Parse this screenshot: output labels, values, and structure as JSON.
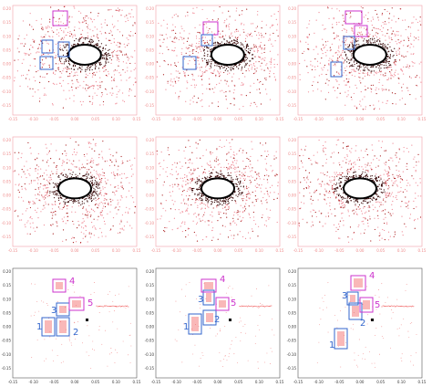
{
  "axes": {
    "xticks": [
      "-0.15",
      "-0.10",
      "-0.05",
      "0.00",
      "0.05",
      "0.10",
      "0.15"
    ],
    "yticks": [
      "0.20",
      "0.15",
      "0.10",
      "0.05",
      "0.00",
      "-0.05",
      "-0.10",
      "-0.15"
    ]
  },
  "box_labels": [
    "1",
    "2",
    "3",
    "4",
    "5"
  ]
}
